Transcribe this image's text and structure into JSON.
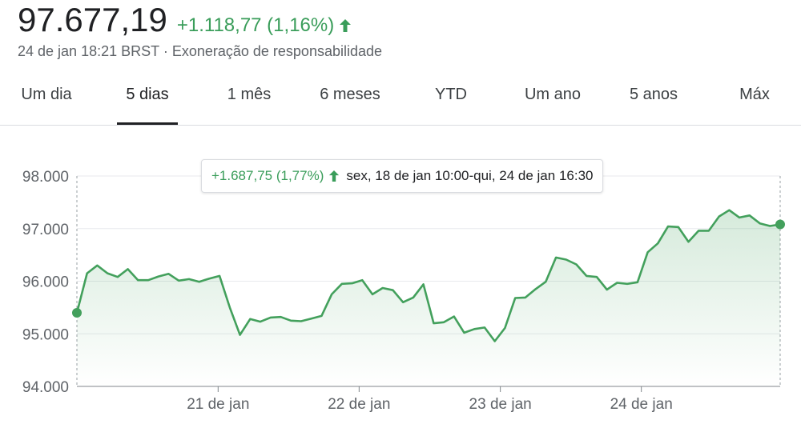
{
  "header": {
    "price": "97.677,19",
    "change": "+1.118,77 (1,16%)",
    "timestamp": "24 de jan 18:21 BRST",
    "separator": "·",
    "disclaimer": "Exoneração de responsabilidade",
    "trend_icon": "arrow-up-icon"
  },
  "colors": {
    "up": "#3a9d5a",
    "line": "#43a05c",
    "grid": "#e8eaed",
    "axis_text": "#5f6368",
    "active_tab": "#202124"
  },
  "tabs": [
    {
      "label": "Um dia",
      "active": false
    },
    {
      "label": "5 dias",
      "active": true
    },
    {
      "label": "1 mês",
      "active": false
    },
    {
      "label": "6 meses",
      "active": false
    },
    {
      "label": "YTD",
      "active": false
    },
    {
      "label": "Um ano",
      "active": false
    },
    {
      "label": "5 anos",
      "active": false
    },
    {
      "label": "Máx",
      "active": false
    }
  ],
  "tooltip": {
    "change": "+1.687,75 (1,77%)",
    "range": "sex, 18 de jan 10:00-qui, 24 de jan 16:30"
  },
  "chart_data": {
    "type": "area",
    "y_tick_labels": [
      "98.000",
      "97.000",
      "96.000",
      "95.000",
      "94.000"
    ],
    "y_ticks": [
      98000,
      97000,
      96000,
      95000,
      94000
    ],
    "ylim": [
      94000,
      98000
    ],
    "x_tick_labels": [
      "21 de jan",
      "22 de jan",
      "23 de jan",
      "24 de jan"
    ],
    "grid": true,
    "values": [
      95400,
      96150,
      96300,
      96150,
      96080,
      96230,
      96020,
      96020,
      96090,
      96140,
      96010,
      96040,
      95990,
      96050,
      96100,
      95500,
      94980,
      95280,
      95230,
      95310,
      95320,
      95250,
      95240,
      95290,
      95340,
      95750,
      95950,
      95960,
      96020,
      95750,
      95870,
      95830,
      95600,
      95690,
      95940,
      95200,
      95220,
      95330,
      95020,
      95090,
      95120,
      94860,
      95110,
      95680,
      95690,
      95850,
      95990,
      96450,
      96410,
      96320,
      96100,
      96080,
      95840,
      95970,
      95950,
      95980,
      96550,
      96720,
      97040,
      97030,
      96750,
      96960,
      96960,
      97230,
      97350,
      97210,
      97250,
      97100,
      97050,
      97080
    ],
    "start_marker": true,
    "end_marker": true
  }
}
